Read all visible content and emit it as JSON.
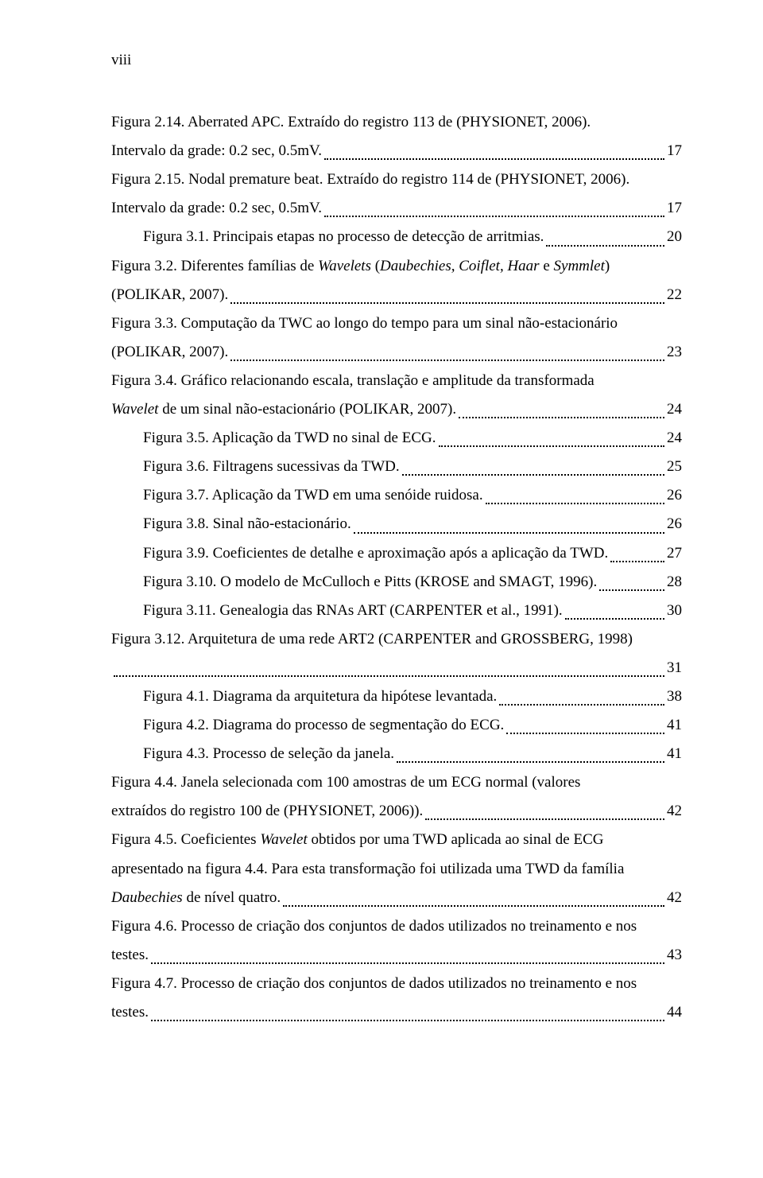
{
  "pageNumber": "viii",
  "entries": [
    {
      "lines": [
        "Figura 2.14. Aberrated APC. Extraído do registro 113 de (PHYSIONET, 2006)."
      ],
      "last": "Intervalo da grade: 0.2 sec, 0.5mV.",
      "page": "17",
      "indentFirst": true
    },
    {
      "lines": [
        "Figura 2.15. Nodal premature beat. Extraído do registro 114 de (PHYSIONET, 2006)."
      ],
      "last": "Intervalo da grade: 0.2 sec, 0.5mV.",
      "page": "17",
      "indentFirst": true
    },
    {
      "last": "Figura 3.1. Principais etapas no processo de detecção de arritmias.",
      "page": "20",
      "indentFirst": true
    },
    {
      "lines": [
        "Figura 3.2. Diferentes famílias de <em>Wavelets</em> (<em>Daubechies, Coiflet, Haar</em> e <em>Symmlet</em>)"
      ],
      "last": "(POLIKAR, 2007).",
      "page": "22",
      "indentFirst": true
    },
    {
      "lines": [
        "Figura 3.3. Computação da TWC ao longo do tempo para um sinal não-estacionário"
      ],
      "last": "(POLIKAR, 2007).",
      "page": "23",
      "indentFirst": true
    },
    {
      "lines": [
        "Figura 3.4. Gráfico relacionando escala, translação e amplitude da transformada"
      ],
      "last": "<em>Wavelet</em> de um sinal não-estacionário (POLIKAR, 2007).",
      "page": "24",
      "indentFirst": true
    },
    {
      "last": "Figura 3.5. Aplicação da TWD no sinal de ECG.",
      "page": "24",
      "indentFirst": true
    },
    {
      "last": "Figura 3.6. Filtragens sucessivas da TWD.",
      "page": "25",
      "indentFirst": true
    },
    {
      "last": "Figura 3.7. Aplicação da TWD em uma senóide ruidosa.",
      "page": "26",
      "indentFirst": true
    },
    {
      "last": "Figura 3.8. Sinal não-estacionário.",
      "page": "26",
      "indentFirst": true
    },
    {
      "last": "Figura 3.9. Coeficientes de detalhe e aproximação após a aplicação da TWD.",
      "page": "27",
      "indentFirst": true
    },
    {
      "last": "Figura 3.10. O modelo de McCulloch e Pitts (KROSE and SMAGT, 1996).",
      "page": "28",
      "indentFirst": true
    },
    {
      "last": "Figura 3.11. Genealogia das RNAs ART (CARPENTER et al., 1991).",
      "page": "30",
      "indentFirst": true
    },
    {
      "lines": [
        "Figura 3.12. Arquitetura de uma rede ART2 (CARPENTER and GROSSBERG, 1998)"
      ],
      "last": "",
      "page": "31",
      "indentFirst": true,
      "lastNoIndent": true
    },
    {
      "last": "Figura 4.1. Diagrama da arquitetura da hipótese levantada.",
      "page": "38",
      "indentFirst": true
    },
    {
      "last": "Figura 4.2. Diagrama do processo de segmentação do ECG.",
      "page": "41",
      "indentFirst": true
    },
    {
      "last": "Figura 4.3. Processo de seleção da janela.",
      "page": "41",
      "indentFirst": true
    },
    {
      "lines": [
        "Figura 4.4. Janela selecionada com 100 amostras de um ECG normal (valores"
      ],
      "last": "extraídos do registro 100 de (PHYSIONET, 2006)).",
      "page": "42",
      "indentFirst": true
    },
    {
      "lines": [
        "Figura 4.5. Coeficientes <em>Wavelet</em> obtidos por uma TWD aplicada ao sinal de ECG",
        "apresentado na figura 4.4. Para esta transformação foi utilizada uma TWD da família"
      ],
      "last": "<em>Daubechies</em> de nível quatro.",
      "page": "42",
      "indentFirst": true
    },
    {
      "lines": [
        "Figura 4.6. Processo de criação dos conjuntos de dados utilizados no treinamento e nos"
      ],
      "last": "testes.",
      "page": "43",
      "indentFirst": true
    },
    {
      "lines": [
        "Figura 4.7. Processo de criação dos conjuntos de dados utilizados no treinamento e nos"
      ],
      "last": "testes.",
      "page": "44",
      "indentFirst": true
    }
  ]
}
